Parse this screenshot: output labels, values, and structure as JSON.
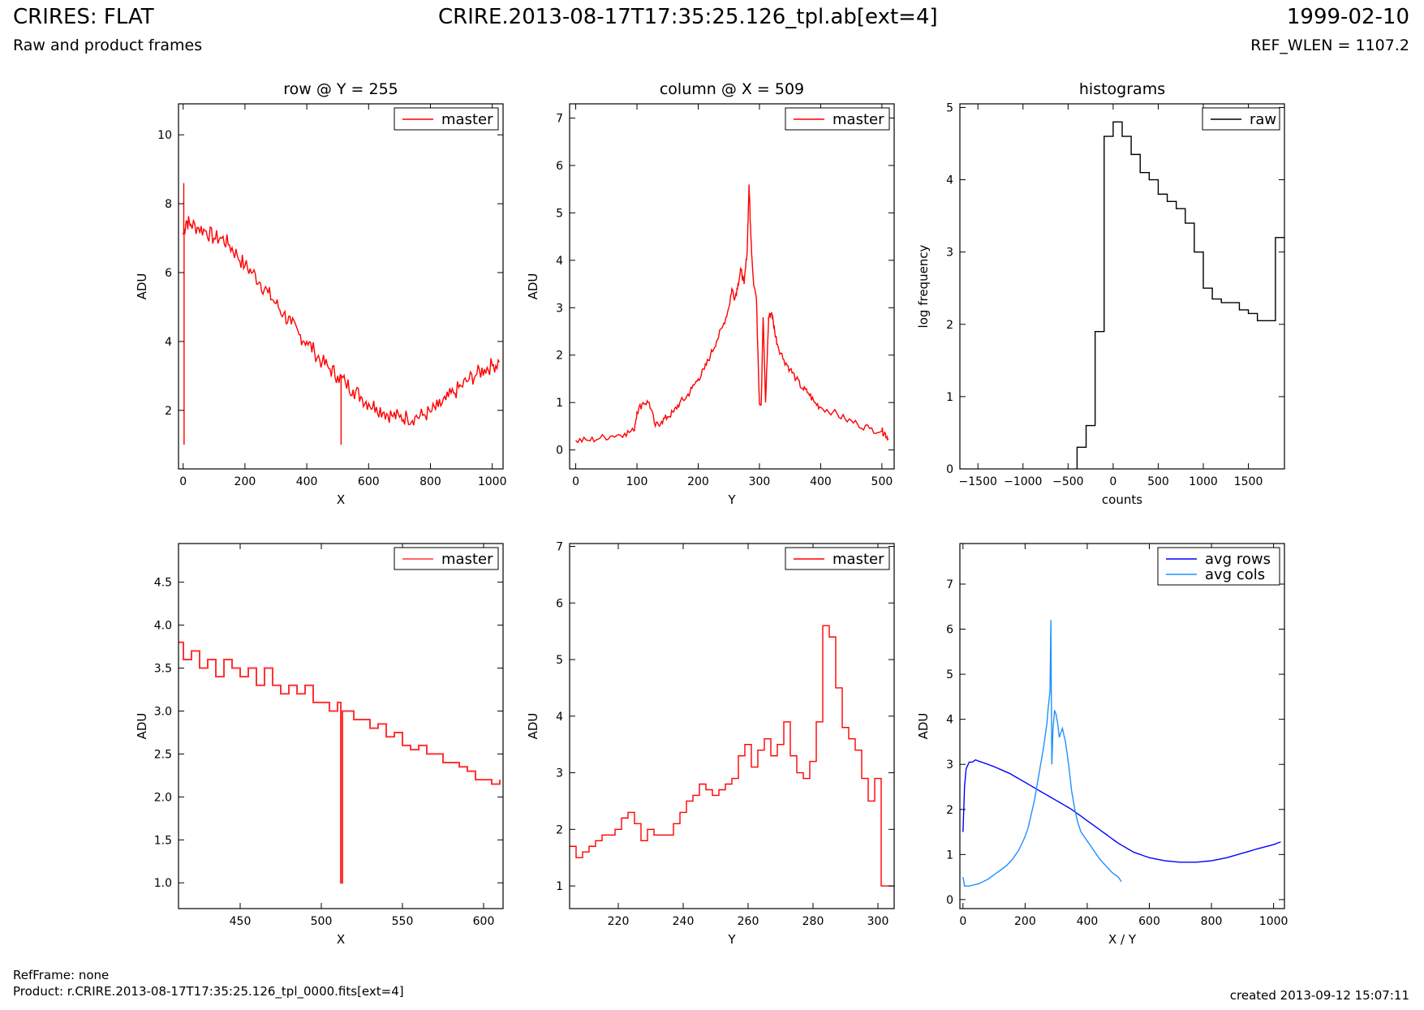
{
  "header": {
    "title": "CRIRES: FLAT",
    "subtitle": "Raw and product frames",
    "file": "CRIRE.2013-08-17T17:35:25.126_tpl.ab[ext=4]",
    "date": "1999-02-10",
    "ref_wlen": "REF_WLEN = 1107.2"
  },
  "footer": {
    "refframe": "RefFrame: none",
    "product": "Product: r.CRIRE.2013-08-17T17:35:25.126_tpl_0000.fits[ext=4]",
    "created": "created 2013-09-12 15:07:11"
  },
  "colors": {
    "master": "#ff0000",
    "master_zoom": "#ff3333",
    "raw": "#000000",
    "avg_rows": "#0000ff",
    "avg_cols": "#1e90ff"
  },
  "chart_data": [
    {
      "id": "row",
      "type": "line",
      "title": "row @ Y = 255",
      "xlabel": "X",
      "ylabel": "ADU",
      "xlim": [
        -15,
        1035
      ],
      "ylim": [
        0.3,
        10.9
      ],
      "xticks": [
        0,
        200,
        400,
        600,
        800,
        1000
      ],
      "xticklabels": [
        "0",
        "200",
        "400",
        "600",
        "800",
        "1000"
      ],
      "yticks": [
        2,
        4,
        6,
        8,
        10
      ],
      "yticklabels": [
        "2",
        "4",
        "6",
        "8",
        "10"
      ],
      "legend": "top-right",
      "series": [
        {
          "name": "master",
          "color": "#ff0000",
          "x": [
            0,
            10,
            25,
            50,
            75,
            100,
            125,
            150,
            175,
            200,
            225,
            250,
            275,
            300,
            325,
            350,
            375,
            400,
            425,
            450,
            475,
            500,
            525,
            550,
            575,
            600,
            625,
            650,
            675,
            700,
            725,
            750,
            775,
            800,
            825,
            850,
            875,
            900,
            925,
            950,
            975,
            1000,
            1023
          ],
          "y": [
            7.1,
            7.5,
            7.4,
            7.3,
            7.2,
            7.0,
            7.0,
            6.8,
            6.5,
            6.2,
            6.0,
            5.7,
            5.4,
            5.1,
            4.8,
            4.5,
            4.2,
            4.0,
            3.7,
            3.4,
            3.2,
            3.0,
            2.8,
            2.6,
            2.4,
            2.2,
            2.1,
            1.95,
            1.85,
            1.8,
            1.8,
            1.8,
            1.85,
            1.95,
            2.1,
            2.3,
            2.5,
            2.7,
            2.9,
            3.05,
            3.2,
            3.3,
            3.4
          ],
          "spikes": [
            {
              "x": 2,
              "y": 8.6
            },
            {
              "x": 3,
              "y": 1.0
            },
            {
              "x": 511,
              "y": 1.0
            }
          ]
        }
      ]
    },
    {
      "id": "col",
      "type": "line",
      "title": "column @ X = 509",
      "xlabel": "Y",
      "ylabel": "ADU",
      "xlim": [
        -10,
        520
      ],
      "ylim": [
        -0.4,
        7.3
      ],
      "xticks": [
        0,
        100,
        200,
        300,
        400,
        500
      ],
      "xticklabels": [
        "0",
        "100",
        "200",
        "300",
        "400",
        "500"
      ],
      "yticks": [
        0,
        1,
        2,
        3,
        4,
        5,
        6,
        7
      ],
      "yticklabels": [
        "0",
        "1",
        "2",
        "3",
        "4",
        "5",
        "6",
        "7"
      ],
      "legend": "top-right",
      "series": [
        {
          "name": "master",
          "color": "#ff0000",
          "x": [
            0,
            20,
            40,
            60,
            80,
            95,
            100,
            110,
            120,
            130,
            140,
            150,
            160,
            170,
            180,
            190,
            200,
            210,
            220,
            230,
            240,
            250,
            255,
            260,
            265,
            270,
            275,
            280,
            283,
            286,
            290,
            295,
            300,
            303,
            306,
            310,
            315,
            320,
            325,
            330,
            340,
            350,
            360,
            370,
            380,
            390,
            400,
            420,
            440,
            460,
            480,
            500,
            505,
            510
          ],
          "y": [
            0.2,
            0.2,
            0.25,
            0.3,
            0.35,
            0.4,
            0.8,
            1.0,
            1.0,
            0.5,
            0.6,
            0.7,
            0.8,
            1.0,
            1.1,
            1.3,
            1.5,
            1.7,
            2.0,
            2.3,
            2.6,
            3.0,
            3.4,
            3.2,
            3.5,
            3.8,
            3.5,
            4.2,
            5.6,
            4.5,
            3.6,
            3.2,
            1.0,
            1.0,
            2.8,
            1.0,
            2.8,
            2.9,
            2.5,
            2.2,
            1.9,
            1.7,
            1.5,
            1.3,
            1.2,
            1.0,
            0.9,
            0.8,
            0.65,
            0.55,
            0.45,
            0.4,
            0.35,
            0.25
          ]
        }
      ]
    },
    {
      "id": "hist",
      "type": "line",
      "title": "histograms",
      "xlabel": "counts",
      "ylabel": "log frequency",
      "xlim": [
        -1700,
        1900
      ],
      "ylim": [
        0,
        5.05
      ],
      "xticks": [
        -1500,
        -1000,
        -500,
        0,
        500,
        1000,
        1500
      ],
      "xticklabels": [
        "−1500",
        "−1000",
        "−500",
        "0",
        "500",
        "1000",
        "1500"
      ],
      "yticks": [
        0,
        1,
        2,
        3,
        4,
        5
      ],
      "yticklabels": [
        "0",
        "1",
        "2",
        "3",
        "4",
        "5"
      ],
      "legend": "top-right",
      "series": [
        {
          "name": "raw",
          "color": "#000000",
          "step": true,
          "edges": [
            -400,
            -300,
            -200,
            -100,
            0,
            100,
            200,
            300,
            400,
            500,
            600,
            700,
            800,
            900,
            1000,
            1100,
            1200,
            1300,
            1400,
            1500,
            1600,
            1700,
            1800,
            1900
          ],
          "counts": [
            0.3,
            0.6,
            1.9,
            4.6,
            4.8,
            4.6,
            4.35,
            4.1,
            4.0,
            3.8,
            3.7,
            3.6,
            3.4,
            3.0,
            2.5,
            2.35,
            2.3,
            2.3,
            2.2,
            2.15,
            2.05,
            2.05,
            3.2
          ]
        }
      ]
    },
    {
      "id": "rowzoom",
      "type": "line",
      "title": "",
      "xlabel": "X",
      "ylabel": "ADU",
      "xlim": [
        412,
        612
      ],
      "ylim": [
        0.7,
        4.95
      ],
      "xticks": [
        450,
        500,
        550,
        600
      ],
      "xticklabels": [
        "450",
        "500",
        "550",
        "600"
      ],
      "yticks": [
        1.0,
        1.5,
        2.0,
        2.5,
        3.0,
        3.5,
        4.0,
        4.5
      ],
      "yticklabels": [
        "1.0",
        "1.5",
        "2.0",
        "2.5",
        "3.0",
        "3.5",
        "4.0",
        "4.5"
      ],
      "legend": "top-right",
      "series": [
        {
          "name": "master",
          "color": "#ff3333",
          "step": true,
          "x": [
            412,
            415,
            420,
            425,
            430,
            435,
            440,
            445,
            450,
            455,
            460,
            465,
            470,
            475,
            480,
            485,
            490,
            495,
            500,
            505,
            510,
            512,
            513,
            515,
            520,
            525,
            530,
            535,
            540,
            545,
            550,
            555,
            560,
            565,
            570,
            575,
            580,
            585,
            590,
            595,
            600,
            605,
            610
          ],
          "y": [
            3.8,
            3.6,
            3.7,
            3.5,
            3.6,
            3.4,
            3.6,
            3.5,
            3.4,
            3.5,
            3.3,
            3.5,
            3.3,
            3.2,
            3.3,
            3.2,
            3.3,
            3.1,
            3.1,
            3.0,
            3.1,
            1.0,
            3.0,
            3.0,
            2.9,
            2.9,
            2.8,
            2.85,
            2.7,
            2.75,
            2.6,
            2.55,
            2.6,
            2.5,
            2.5,
            2.4,
            2.4,
            2.35,
            2.3,
            2.2,
            2.2,
            2.15,
            2.2
          ]
        }
      ]
    },
    {
      "id": "colzoom",
      "type": "line",
      "title": "",
      "xlabel": "Y",
      "ylabel": "ADU",
      "xlim": [
        205,
        305
      ],
      "ylim": [
        0.6,
        7.05
      ],
      "xticks": [
        220,
        240,
        260,
        280,
        300
      ],
      "xticklabels": [
        "220",
        "240",
        "260",
        "280",
        "300"
      ],
      "yticks": [
        1,
        2,
        3,
        4,
        5,
        6,
        7
      ],
      "yticklabels": [
        "1",
        "2",
        "3",
        "4",
        "5",
        "6",
        "7"
      ],
      "legend": "top-right",
      "series": [
        {
          "name": "master",
          "color": "#ff0000",
          "step": true,
          "x": [
            205,
            207,
            209,
            211,
            213,
            215,
            217,
            219,
            221,
            223,
            225,
            227,
            229,
            231,
            233,
            235,
            237,
            239,
            241,
            243,
            245,
            247,
            249,
            251,
            253,
            255,
            257,
            259,
            261,
            263,
            265,
            267,
            269,
            271,
            273,
            275,
            277,
            279,
            281,
            283,
            285,
            287,
            289,
            291,
            293,
            295,
            297,
            299,
            301,
            303,
            305
          ],
          "y": [
            1.7,
            1.5,
            1.6,
            1.7,
            1.8,
            1.9,
            1.9,
            2.0,
            2.2,
            2.3,
            2.1,
            1.8,
            2.0,
            1.9,
            1.9,
            1.9,
            2.1,
            2.3,
            2.5,
            2.6,
            2.8,
            2.7,
            2.6,
            2.7,
            2.8,
            2.9,
            3.3,
            3.5,
            3.1,
            3.4,
            3.6,
            3.3,
            3.5,
            3.9,
            3.3,
            3.0,
            2.9,
            3.2,
            3.9,
            5.6,
            5.4,
            4.5,
            3.8,
            3.6,
            3.4,
            2.9,
            2.5,
            2.9,
            1.0,
            1.0,
            1.0
          ]
        }
      ]
    },
    {
      "id": "avg",
      "type": "line",
      "title": "",
      "xlabel": "X / Y",
      "ylabel": "ADU",
      "xlim": [
        -10,
        1035
      ],
      "ylim": [
        -0.2,
        7.9
      ],
      "xticks": [
        0,
        200,
        400,
        600,
        800,
        1000
      ],
      "xticklabels": [
        "0",
        "200",
        "400",
        "600",
        "800",
        "1000"
      ],
      "yticks": [
        0,
        1,
        2,
        3,
        4,
        5,
        6,
        7
      ],
      "yticklabels": [
        "0",
        "1",
        "2",
        "3",
        "4",
        "5",
        "6",
        "7"
      ],
      "legend": "top-right",
      "series": [
        {
          "name": "avg rows",
          "color": "#0000ff",
          "x": [
            0,
            5,
            10,
            20,
            30,
            40,
            60,
            80,
            100,
            150,
            200,
            250,
            300,
            350,
            400,
            450,
            500,
            550,
            600,
            650,
            700,
            750,
            800,
            850,
            900,
            950,
            1000,
            1023
          ],
          "y": [
            1.5,
            2.5,
            2.9,
            3.05,
            3.05,
            3.1,
            3.05,
            3.0,
            2.95,
            2.8,
            2.6,
            2.4,
            2.2,
            2.0,
            1.75,
            1.5,
            1.25,
            1.05,
            0.93,
            0.86,
            0.83,
            0.83,
            0.86,
            0.93,
            1.03,
            1.13,
            1.22,
            1.28
          ]
        },
        {
          "name": "avg cols",
          "color": "#1e90ff",
          "x": [
            0,
            5,
            20,
            50,
            80,
            100,
            120,
            140,
            160,
            180,
            200,
            210,
            220,
            230,
            240,
            250,
            260,
            270,
            275,
            280,
            283,
            286,
            290,
            295,
            300,
            305,
            310,
            320,
            330,
            340,
            350,
            360,
            370,
            380,
            400,
            420,
            440,
            460,
            480,
            500,
            510
          ],
          "y": [
            0.5,
            0.3,
            0.3,
            0.35,
            0.45,
            0.55,
            0.65,
            0.75,
            0.9,
            1.1,
            1.4,
            1.6,
            1.9,
            2.2,
            2.6,
            3.0,
            3.4,
            3.9,
            4.3,
            4.6,
            6.2,
            3.0,
            3.8,
            4.2,
            4.1,
            3.9,
            3.6,
            3.8,
            3.5,
            3.0,
            2.4,
            2.0,
            1.7,
            1.5,
            1.3,
            1.1,
            0.9,
            0.75,
            0.6,
            0.5,
            0.4
          ]
        }
      ]
    }
  ]
}
